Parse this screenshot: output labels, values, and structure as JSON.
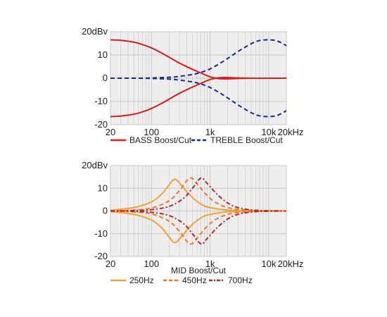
{
  "colors": {
    "plot_background": "#eeeeee",
    "grid": "#c8c8c8",
    "bass": "#dd1c1c",
    "treble": "#1a2a8c",
    "mid_250": "#f6a03a",
    "mid_450": "#f07a2a",
    "mid_700": "#b52828"
  },
  "chart_data": [
    {
      "type": "line",
      "title": "",
      "xlabel": "",
      "ylabel": "",
      "x_scale": "log",
      "xlim": [
        20,
        20000
      ],
      "ylim": [
        -20,
        20
      ],
      "grid": true,
      "legend_placement": "bottom",
      "x_ticks": [
        {
          "value": 20,
          "label": "20"
        },
        {
          "value": 100,
          "label": "100"
        },
        {
          "value": 1000,
          "label": "1k"
        },
        {
          "value": 10000,
          "label": "10k"
        },
        {
          "value": 20000,
          "label": "20kHz"
        }
      ],
      "y_ticks": [
        {
          "value": 20,
          "label": "20dBv"
        },
        {
          "value": 10,
          "label": "10"
        },
        {
          "value": 0,
          "label": "0"
        },
        {
          "value": -10,
          "label": "-10"
        },
        {
          "value": -20,
          "label": "-20"
        }
      ],
      "legend": [
        {
          "label": "BASS Boost/Cut",
          "color": "#dd1c1c",
          "dash": "solid"
        },
        {
          "label": "TREBLE Boost/Cut",
          "color": "#1a2a8c",
          "dash": "dashed"
        }
      ],
      "series": [
        {
          "group": "BASS Boost/Cut",
          "color": "#dd1c1c",
          "dash": "solid",
          "x": [
            20,
            30,
            50,
            70,
            100,
            150,
            200,
            300,
            500,
            700,
            1000,
            1400,
            2000,
            3000,
            5000,
            10000,
            20000
          ],
          "y": [
            16.5,
            16.3,
            15.5,
            14.5,
            13,
            10.8,
            9,
            6.5,
            3.8,
            2.2,
            0.6,
            -0.2,
            -0.3,
            -0.1,
            0,
            0,
            0
          ]
        },
        {
          "group": "BASS Boost/Cut",
          "color": "#dd1c1c",
          "dash": "solid",
          "x": [
            20,
            30,
            50,
            70,
            100,
            150,
            200,
            300,
            500,
            700,
            1000,
            1400,
            2000,
            3000,
            5000,
            10000,
            20000
          ],
          "y": [
            -16.5,
            -16.3,
            -15.5,
            -14.5,
            -13,
            -10.8,
            -9,
            -6.5,
            -3.8,
            -2.2,
            -0.6,
            0.2,
            0.3,
            0.1,
            0,
            0,
            0
          ]
        },
        {
          "group": "TREBLE Boost/Cut",
          "color": "#1a2a8c",
          "dash": "dashed",
          "x": [
            20,
            50,
            100,
            200,
            300,
            500,
            700,
            1000,
            1500,
            2000,
            3000,
            5000,
            7000,
            10000,
            14000,
            20000
          ],
          "y": [
            0,
            0,
            0.1,
            0.4,
            0.8,
            1.6,
            2.5,
            4,
            6.5,
            8.5,
            11.5,
            14.8,
            16.2,
            16.5,
            16,
            14
          ]
        },
        {
          "group": "TREBLE Boost/Cut",
          "color": "#1a2a8c",
          "dash": "dashed",
          "x": [
            20,
            50,
            100,
            200,
            300,
            500,
            700,
            1000,
            1500,
            2000,
            3000,
            5000,
            7000,
            10000,
            14000,
            20000
          ],
          "y": [
            0,
            0,
            -0.1,
            -0.4,
            -0.8,
            -1.6,
            -2.5,
            -4,
            -6.5,
            -8.5,
            -11.5,
            -14.8,
            -16.2,
            -16.5,
            -16,
            -14
          ]
        }
      ]
    },
    {
      "type": "line",
      "title": "",
      "xlabel": "MID Boost/Cut",
      "ylabel": "",
      "x_scale": "log",
      "xlim": [
        20,
        20000
      ],
      "ylim": [
        -20,
        20
      ],
      "grid": true,
      "legend_placement": "bottom",
      "x_ticks": [
        {
          "value": 20,
          "label": "20"
        },
        {
          "value": 100,
          "label": "100"
        },
        {
          "value": 1000,
          "label": "1k"
        },
        {
          "value": 10000,
          "label": "10k"
        },
        {
          "value": 20000,
          "label": "20kHz"
        }
      ],
      "y_ticks": [
        {
          "value": 20,
          "label": "20dBv"
        },
        {
          "value": 10,
          "label": "10"
        },
        {
          "value": 0,
          "label": "0"
        },
        {
          "value": -10,
          "label": "-10"
        },
        {
          "value": -20,
          "label": "-20"
        }
      ],
      "legend": [
        {
          "label": "250Hz",
          "color": "#f6a03a",
          "dash": "solid"
        },
        {
          "label": "450Hz",
          "color": "#f07a2a",
          "dash": "dashed"
        },
        {
          "label": "700Hz",
          "color": "#b52828",
          "dash": "dashdot"
        }
      ],
      "series": [
        {
          "group": "250Hz",
          "color": "#f6a03a",
          "dash": "solid",
          "peak_hz": 250,
          "peak_db": 14,
          "x": [
            20,
            50,
            100,
            150,
            200,
            250,
            320,
            450,
            700,
            1000,
            2000,
            5000,
            20000
          ],
          "y": [
            0.3,
            1.5,
            4,
            7.5,
            11.5,
            14,
            11.5,
            7,
            3,
            1.5,
            0.4,
            0,
            0
          ]
        },
        {
          "group": "250Hz",
          "color": "#f6a03a",
          "dash": "solid",
          "peak_hz": 250,
          "peak_db": -14,
          "x": [
            20,
            50,
            100,
            150,
            200,
            250,
            320,
            450,
            700,
            1000,
            2000,
            5000,
            20000
          ],
          "y": [
            -0.3,
            -1.5,
            -4,
            -7.5,
            -11.5,
            -14,
            -11.5,
            -7,
            -3,
            -1.5,
            -0.4,
            0,
            0
          ]
        },
        {
          "group": "450Hz",
          "color": "#f07a2a",
          "dash": "dashed",
          "peak_hz": 450,
          "peak_db": 14.5,
          "x": [
            20,
            50,
            100,
            200,
            300,
            450,
            600,
            800,
            1200,
            2000,
            4000,
            10000,
            20000
          ],
          "y": [
            0,
            0.4,
            1.3,
            4.5,
            9,
            14.5,
            12,
            8,
            4,
            1.5,
            0.4,
            0,
            0
          ]
        },
        {
          "group": "450Hz",
          "color": "#f07a2a",
          "dash": "dashed",
          "peak_hz": 450,
          "peak_db": -14.5,
          "x": [
            20,
            50,
            100,
            200,
            300,
            450,
            600,
            800,
            1200,
            2000,
            4000,
            10000,
            20000
          ],
          "y": [
            0,
            -0.4,
            -1.3,
            -4.5,
            -9,
            -14.5,
            -12,
            -8,
            -4,
            -1.5,
            -0.4,
            0,
            0
          ]
        },
        {
          "group": "700Hz",
          "color": "#b52828",
          "dash": "dashdot",
          "peak_hz": 700,
          "peak_db": 14.5,
          "x": [
            20,
            50,
            100,
            200,
            350,
            500,
            700,
            900,
            1300,
            2000,
            3000,
            6000,
            20000
          ],
          "y": [
            0,
            0.2,
            0.6,
            2,
            5.5,
            10,
            14.5,
            12,
            7.5,
            3.5,
            1.5,
            0.3,
            0
          ]
        },
        {
          "group": "700Hz",
          "color": "#b52828",
          "dash": "dashdot",
          "peak_hz": 700,
          "peak_db": -14.5,
          "x": [
            20,
            50,
            100,
            200,
            350,
            500,
            700,
            900,
            1300,
            2000,
            3000,
            6000,
            20000
          ],
          "y": [
            0,
            -0.2,
            -0.6,
            -2,
            -5.5,
            -10,
            -14.5,
            -12,
            -7.5,
            -3.5,
            -1.5,
            -0.3,
            0
          ]
        }
      ]
    }
  ]
}
